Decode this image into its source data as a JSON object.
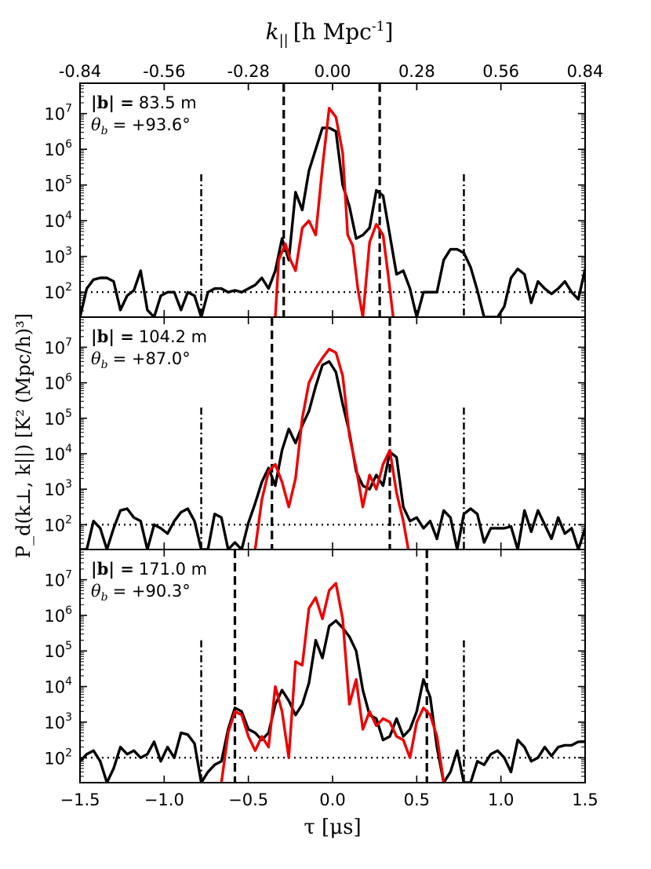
{
  "chart_data": {
    "type": "line",
    "top_axis": {
      "label_italic": "k",
      "label_sub": "||",
      "label_rest": "[h Mpc",
      "label_sup": "-1",
      "label_close": "]",
      "ticks": [
        "-0.84",
        "-0.56",
        "-0.28",
        "0.00",
        "0.28",
        "0.56",
        "0.84"
      ],
      "tick_values": [
        -0.84,
        -0.56,
        -0.28,
        0.0,
        0.28,
        0.56,
        0.84
      ]
    },
    "x_axis": {
      "label": "τ [μs]",
      "ticks": [
        "−1.5",
        "−1.0",
        "−0.5",
        "0.0",
        "0.5",
        "1.0",
        "1.5"
      ],
      "tick_values": [
        -1.5,
        -1.0,
        -0.5,
        0.0,
        0.5,
        1.0,
        1.5
      ],
      "xlim": [
        -1.5,
        1.5
      ]
    },
    "y_axis": {
      "label": "P_d(k⊥, k||)  [K² (Mpc/h)³]",
      "log_ylim": [
        1.3,
        7.85
      ],
      "tick_exponents": [
        2,
        3,
        4,
        5,
        6,
        7
      ],
      "tick_base": "10"
    },
    "noise_level_log": 2.0,
    "horizon_dashdot_tau": [
      -0.78,
      0.78
    ],
    "horizon_dashdot_top_log": 5.3,
    "panels": [
      {
        "baseline_label": "|b| = 83.5 m",
        "angle_label": "θ_b = +93.6°",
        "baseline_name": "|b| =",
        "baseline_value": "83.5 m",
        "angle_name": "θ",
        "angle_sub": "b",
        "angle_value": "= +93.6°",
        "dashed_tau": [
          -0.29,
          0.28
        ],
        "series": [
          {
            "name": "black",
            "color": "#000000",
            "x": [
              -1.5,
              -1.46,
              -1.42,
              -1.38,
              -1.34,
              -1.3,
              -1.26,
              -1.22,
              -1.18,
              -1.14,
              -1.1,
              -1.06,
              -1.02,
              -0.98,
              -0.94,
              -0.9,
              -0.86,
              -0.82,
              -0.78,
              -0.74,
              -0.7,
              -0.66,
              -0.62,
              -0.58,
              -0.54,
              -0.5,
              -0.46,
              -0.42,
              -0.38,
              -0.34,
              -0.3,
              -0.26,
              -0.22,
              -0.18,
              -0.14,
              -0.1,
              -0.06,
              -0.02,
              0.02,
              0.06,
              0.1,
              0.14,
              0.18,
              0.22,
              0.26,
              0.3,
              0.34,
              0.38,
              0.42,
              0.46,
              0.5,
              0.54,
              0.58,
              0.62,
              0.66,
              0.7,
              0.74,
              0.78,
              0.82,
              0.86,
              0.9,
              0.94,
              0.98,
              1.02,
              1.06,
              1.1,
              1.14,
              1.18,
              1.22,
              1.26,
              1.3,
              1.34,
              1.38,
              1.42,
              1.46,
              1.5
            ],
            "y": [
              1.3,
              2.1,
              2.35,
              2.4,
              2.4,
              2.3,
              1.5,
              1.9,
              2.05,
              2.6,
              1.5,
              1.3,
              1.9,
              2.0,
              2.0,
              1.5,
              2.0,
              1.9,
              1.3,
              2.0,
              2.1,
              2.1,
              2.0,
              2.05,
              2.0,
              2.1,
              2.2,
              2.4,
              2.1,
              2.6,
              3.5,
              2.9,
              4.8,
              4.3,
              5.4,
              6.0,
              6.6,
              6.6,
              6.5,
              5.0,
              4.4,
              3.5,
              3.6,
              3.8,
              4.85,
              4.7,
              3.6,
              2.5,
              2.6,
              2.1,
              1.3,
              2.0,
              2.0,
              2.0,
              2.9,
              3.2,
              3.2,
              3.1,
              2.7,
              2.05,
              1.3,
              1.3,
              1.3,
              1.6,
              2.4,
              2.65,
              2.5,
              1.7,
              2.3,
              2.1,
              1.95,
              2.1,
              2.3,
              2.0,
              1.8,
              2.65
            ]
          },
          {
            "name": "red",
            "color": "#ee0000",
            "x": [
              -0.34,
              -0.32,
              -0.28,
              -0.25,
              -0.22,
              -0.18,
              -0.14,
              -0.1,
              -0.06,
              -0.02,
              0.02,
              0.06,
              0.09,
              0.12,
              0.15,
              0.18,
              0.22,
              0.26,
              0.3,
              0.33,
              0.36
            ],
            "y": [
              1.3,
              2.9,
              3.35,
              2.9,
              2.6,
              3.8,
              4.0,
              3.6,
              5.5,
              7.15,
              6.9,
              5.9,
              3.6,
              3.3,
              2.1,
              1.3,
              3.4,
              3.9,
              3.6,
              2.5,
              1.3
            ]
          }
        ]
      },
      {
        "baseline_label": "|b| = 104.2 m",
        "angle_label": "θ_b = +87.0°",
        "baseline_name": "|b| =",
        "baseline_value": "104.2 m",
        "angle_name": "θ",
        "angle_sub": "b",
        "angle_value": "= +87.0°",
        "dashed_tau": [
          -0.36,
          0.34
        ],
        "series": [
          {
            "name": "black",
            "color": "#000000",
            "x": [
              -1.5,
              -1.46,
              -1.42,
              -1.38,
              -1.34,
              -1.3,
              -1.26,
              -1.22,
              -1.18,
              -1.14,
              -1.1,
              -1.06,
              -1.02,
              -0.98,
              -0.94,
              -0.9,
              -0.86,
              -0.82,
              -0.78,
              -0.74,
              -0.7,
              -0.66,
              -0.62,
              -0.58,
              -0.54,
              -0.5,
              -0.46,
              -0.42,
              -0.38,
              -0.34,
              -0.3,
              -0.26,
              -0.22,
              -0.18,
              -0.14,
              -0.1,
              -0.06,
              -0.02,
              0.02,
              0.06,
              0.1,
              0.14,
              0.18,
              0.22,
              0.26,
              0.3,
              0.34,
              0.38,
              0.42,
              0.46,
              0.5,
              0.54,
              0.58,
              0.62,
              0.66,
              0.7,
              0.74,
              0.78,
              0.82,
              0.86,
              0.9,
              0.94,
              0.98,
              1.02,
              1.06,
              1.1,
              1.14,
              1.18,
              1.22,
              1.26,
              1.3,
              1.34,
              1.38,
              1.42,
              1.46,
              1.5
            ],
            "y": [
              1.3,
              1.3,
              2.1,
              1.9,
              1.3,
              1.9,
              2.4,
              2.45,
              2.2,
              2.1,
              1.3,
              2.0,
              1.9,
              1.75,
              2.1,
              2.35,
              2.45,
              2.1,
              1.3,
              1.3,
              2.3,
              2.2,
              1.3,
              1.5,
              1.3,
              2.05,
              2.6,
              3.2,
              3.6,
              3.1,
              4.1,
              4.7,
              4.3,
              4.8,
              5.2,
              5.9,
              6.5,
              6.6,
              6.3,
              5.4,
              4.6,
              3.5,
              3.1,
              3.0,
              3.4,
              3.1,
              4.05,
              3.9,
              2.5,
              2.1,
              2.2,
              1.9,
              2.1,
              1.6,
              2.4,
              2.2,
              1.3,
              2.3,
              2.45,
              2.3,
              1.5,
              1.9,
              1.9,
              1.9,
              1.95,
              1.3,
              2.4,
              1.8,
              2.4,
              2.0,
              1.6,
              2.2,
              1.75,
              1.9,
              1.3,
              1.9
            ]
          },
          {
            "name": "red",
            "color": "#ee0000",
            "x": [
              -0.46,
              -0.42,
              -0.38,
              -0.34,
              -0.3,
              -0.26,
              -0.22,
              -0.18,
              -0.14,
              -0.1,
              -0.06,
              -0.02,
              0.02,
              0.06,
              0.1,
              0.14,
              0.18,
              0.22,
              0.26,
              0.3,
              0.34,
              0.38,
              0.42,
              0.45
            ],
            "y": [
              1.3,
              2.7,
              3.5,
              3.7,
              3.2,
              2.5,
              3.3,
              5.0,
              6.0,
              6.4,
              6.7,
              6.95,
              6.85,
              6.2,
              4.5,
              3.6,
              2.5,
              3.4,
              3.0,
              3.7,
              4.1,
              2.9,
              2.1,
              1.3
            ]
          }
        ]
      },
      {
        "baseline_label": "|b| = 171.0 m",
        "angle_label": "θ_b = +90.3°",
        "baseline_name": "|b| =",
        "baseline_value": "171.0 m",
        "angle_name": "θ",
        "angle_sub": "b",
        "angle_value": "= +90.3°",
        "dashed_tau": [
          -0.58,
          0.56
        ],
        "series": [
          {
            "name": "black",
            "color": "#000000",
            "x": [
              -1.5,
              -1.46,
              -1.42,
              -1.38,
              -1.34,
              -1.3,
              -1.26,
              -1.22,
              -1.18,
              -1.14,
              -1.1,
              -1.06,
              -1.02,
              -0.98,
              -0.94,
              -0.9,
              -0.86,
              -0.82,
              -0.78,
              -0.74,
              -0.7,
              -0.66,
              -0.62,
              -0.58,
              -0.54,
              -0.5,
              -0.46,
              -0.42,
              -0.38,
              -0.34,
              -0.3,
              -0.26,
              -0.22,
              -0.18,
              -0.14,
              -0.1,
              -0.06,
              -0.02,
              0.02,
              0.06,
              0.1,
              0.14,
              0.18,
              0.22,
              0.26,
              0.3,
              0.34,
              0.38,
              0.42,
              0.46,
              0.5,
              0.54,
              0.58,
              0.62,
              0.66,
              0.7,
              0.74,
              0.78,
              0.82,
              0.86,
              0.9,
              0.94,
              0.98,
              1.02,
              1.06,
              1.1,
              1.14,
              1.18,
              1.22,
              1.26,
              1.3,
              1.34,
              1.38,
              1.42,
              1.46,
              1.5
            ],
            "y": [
              1.9,
              2.1,
              2.2,
              1.9,
              1.3,
              1.7,
              2.3,
              2.1,
              2.2,
              2.0,
              2.1,
              2.45,
              1.9,
              2.3,
              2.0,
              2.7,
              2.65,
              2.4,
              1.3,
              1.6,
              1.8,
              1.9,
              2.8,
              3.4,
              3.3,
              2.8,
              2.7,
              2.5,
              2.7,
              3.5,
              3.9,
              3.6,
              3.2,
              3.5,
              4.1,
              5.3,
              4.8,
              5.7,
              5.85,
              5.65,
              5.4,
              5.0,
              3.9,
              3.2,
              3.1,
              2.5,
              2.6,
              3.1,
              2.6,
              2.8,
              3.3,
              4.2,
              3.7,
              2.3,
              1.3,
              1.6,
              2.2,
              1.3,
              1.3,
              1.9,
              1.8,
              2.1,
              2.2,
              2.0,
              1.6,
              2.5,
              2.3,
              1.9,
              2.0,
              2.3,
              2.05,
              2.3,
              2.35,
              2.35,
              2.45,
              2.45
            ]
          },
          {
            "name": "red",
            "color": "#ee0000",
            "x": [
              -0.66,
              -0.62,
              -0.58,
              -0.54,
              -0.5,
              -0.46,
              -0.42,
              -0.38,
              -0.34,
              -0.3,
              -0.26,
              -0.22,
              -0.18,
              -0.14,
              -0.1,
              -0.06,
              -0.02,
              0.02,
              0.06,
              0.1,
              0.14,
              0.18,
              0.22,
              0.26,
              0.3,
              0.34,
              0.38,
              0.42,
              0.46,
              0.5,
              0.54,
              0.58,
              0.62,
              0.66
            ],
            "y": [
              1.3,
              2.7,
              3.3,
              3.2,
              2.6,
              2.2,
              2.6,
              2.3,
              4.0,
              3.3,
              2.0,
              4.7,
              4.6,
              6.2,
              6.5,
              5.9,
              6.7,
              6.9,
              5.9,
              3.5,
              4.2,
              2.8,
              3.3,
              2.9,
              3.1,
              3.0,
              2.6,
              2.5,
              2.0,
              3.0,
              3.4,
              3.2,
              2.6,
              1.3
            ]
          }
        ]
      }
    ]
  }
}
